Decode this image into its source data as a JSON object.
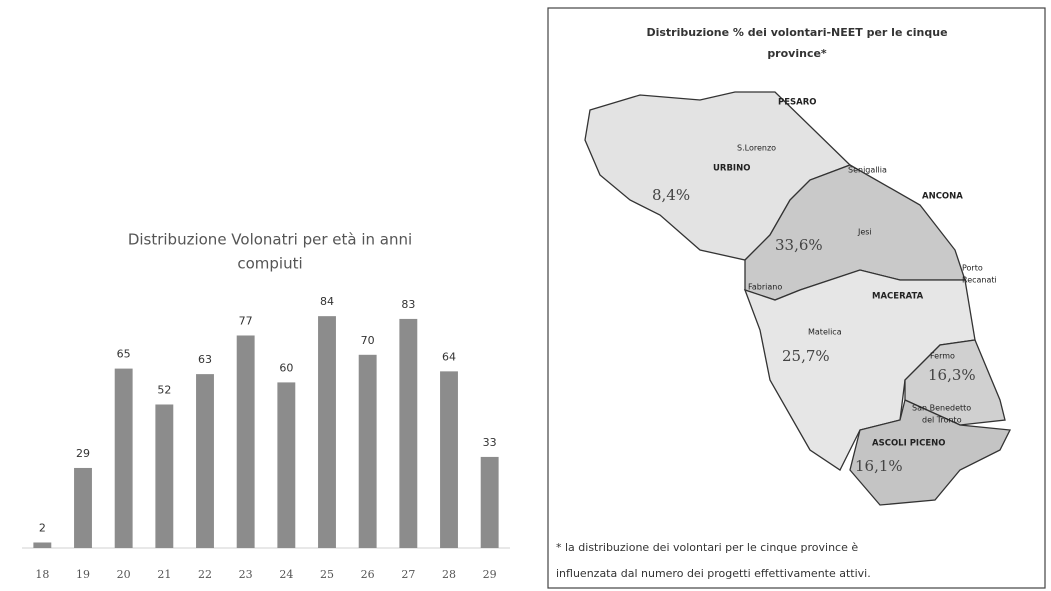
{
  "chart_data": {
    "type": "bar",
    "title": [
      "Distribuzione Volonatri per età in anni",
      "compiuti"
    ],
    "categories": [
      "18",
      "19",
      "20",
      "21",
      "22",
      "23",
      "24",
      "25",
      "26",
      "27",
      "28",
      "29"
    ],
    "values": [
      2,
      29,
      65,
      52,
      63,
      77,
      60,
      84,
      70,
      83,
      64,
      33
    ],
    "color": "#8c8c8c",
    "ylim": [
      0,
      100
    ]
  },
  "map": {
    "title": [
      "Distribuzione % dei volontari-NEET per le cinque",
      "province*"
    ],
    "places": [
      "PESARO",
      "S.Lorenzo",
      "URBINO",
      "Senigallia",
      "ANCONA",
      "Jesi",
      "Porto",
      "Recanati",
      "Fabriano",
      "MACERATA",
      "Matelica",
      "Fermo",
      "San Benedetto",
      "del Tronto",
      "ASCOLI PICENO"
    ],
    "percentages": [
      "8,4%",
      "33,6%",
      "25,7%",
      "16,3%",
      "16,1%"
    ],
    "footnote": [
      "* la distribuzione dei volontari per le cinque province è",
      "influenzata dal numero dei progetti effettivamente attivi."
    ]
  }
}
